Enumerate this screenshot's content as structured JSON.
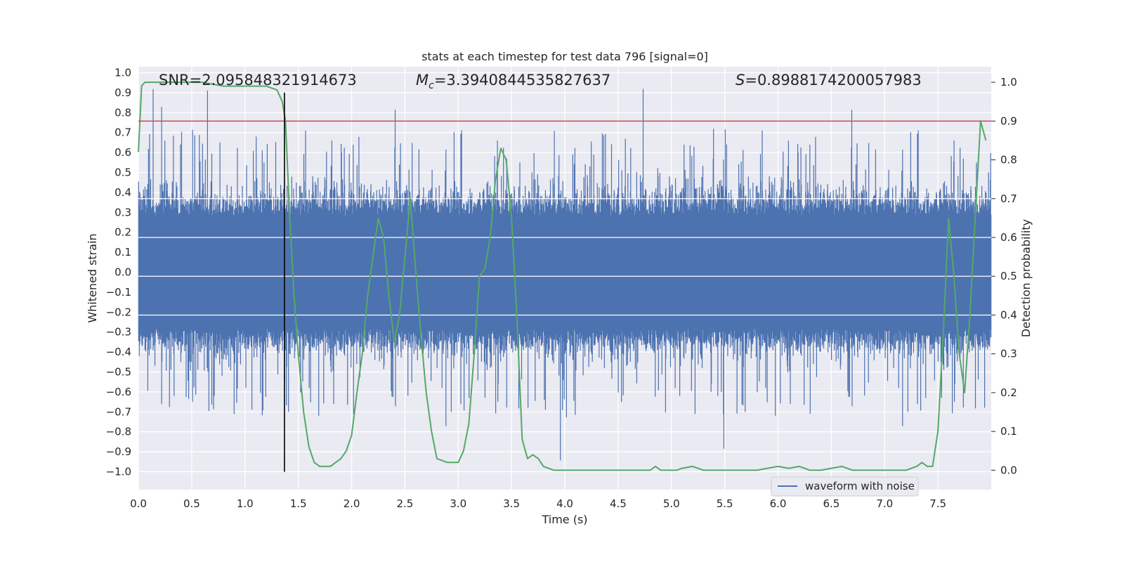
{
  "chart_data": {
    "type": "line",
    "title": "stats at each timestep for test data 796 [signal=0]",
    "xlabel": "Time (s)",
    "ylabel_left": "Whitened strain",
    "ylabel_right": "Detection probability",
    "xlim": [
      0.0,
      8.0
    ],
    "ylim_left": [
      -1.09,
      1.03
    ],
    "ylim_right": [
      -0.05,
      1.04
    ],
    "x_ticks": [
      "0.0",
      "0.5",
      "1.0",
      "1.5",
      "2.0",
      "2.5",
      "3.0",
      "3.5",
      "4.0",
      "4.5",
      "5.0",
      "5.5",
      "6.0",
      "6.5",
      "7.0",
      "7.5"
    ],
    "y_left_ticks": [
      "1.0",
      "0.9",
      "0.8",
      "0.7",
      "0.6",
      "0.5",
      "0.4",
      "0.3",
      "0.2",
      "0.1",
      "0.0",
      "−0.1",
      "−0.2",
      "−0.3",
      "−0.4",
      "−0.5",
      "−0.6",
      "−0.7",
      "−0.8",
      "−0.9",
      "−1.0"
    ],
    "y_right_ticks": [
      "1.0",
      "0.9",
      "0.8",
      "0.7",
      "0.6",
      "0.5",
      "0.4",
      "0.3",
      "0.2",
      "0.1",
      "0.0"
    ],
    "annotations": {
      "snr": "SNR=2.095848321914673",
      "mc_symbol": "M",
      "mc_sub": "c",
      "mc_value": "=3.3940844535827637",
      "s_symbol": "S",
      "s_value": "=0.8988174200057983"
    },
    "threshold_probability": 0.9,
    "threshold_color": "#c44e52",
    "vertical_marker_time": 1.37,
    "legend": [
      {
        "name": "waveform with noise",
        "color": "#4c72b0"
      }
    ],
    "series": [
      {
        "name": "waveform with noise",
        "axis": "left",
        "color": "#4c72b0",
        "envelope": "noise band approximately ±0.4 with spikes to ±0.9"
      },
      {
        "name": "detection probability",
        "axis": "right",
        "color": "#55a868",
        "x": [
          0.0,
          0.03,
          0.06,
          0.1,
          0.15,
          0.2,
          0.3,
          0.4,
          0.5,
          0.6,
          0.7,
          0.8,
          0.9,
          1.0,
          1.1,
          1.2,
          1.3,
          1.35,
          1.38,
          1.42,
          1.46,
          1.5,
          1.55,
          1.6,
          1.65,
          1.7,
          1.8,
          1.9,
          1.95,
          2.0,
          2.05,
          2.1,
          2.15,
          2.2,
          2.25,
          2.3,
          2.35,
          2.4,
          2.45,
          2.5,
          2.55,
          2.6,
          2.65,
          2.7,
          2.75,
          2.8,
          2.9,
          3.0,
          3.05,
          3.1,
          3.15,
          3.2,
          3.25,
          3.3,
          3.35,
          3.4,
          3.45,
          3.5,
          3.55,
          3.6,
          3.65,
          3.7,
          3.75,
          3.8,
          3.9,
          4.0,
          4.1,
          4.2,
          4.3,
          4.4,
          4.5,
          4.6,
          4.7,
          4.8,
          4.85,
          4.9,
          5.0,
          5.05,
          5.1,
          5.2,
          5.3,
          5.4,
          5.5,
          5.6,
          5.7,
          5.8,
          5.9,
          6.0,
          6.1,
          6.2,
          6.3,
          6.4,
          6.5,
          6.6,
          6.7,
          6.8,
          6.9,
          7.0,
          7.1,
          7.2,
          7.3,
          7.35,
          7.4,
          7.45,
          7.5,
          7.55,
          7.6,
          7.65,
          7.7,
          7.75,
          7.8,
          7.85,
          7.9,
          7.95
        ],
        "y": [
          0.82,
          0.99,
          1.0,
          1.0,
          1.0,
          1.0,
          1.0,
          1.0,
          1.0,
          1.0,
          0.995,
          0.99,
          0.99,
          0.99,
          0.99,
          0.99,
          0.98,
          0.95,
          0.9,
          0.65,
          0.45,
          0.3,
          0.15,
          0.06,
          0.02,
          0.01,
          0.01,
          0.03,
          0.05,
          0.09,
          0.2,
          0.3,
          0.45,
          0.55,
          0.65,
          0.6,
          0.45,
          0.33,
          0.4,
          0.55,
          0.7,
          0.52,
          0.35,
          0.2,
          0.1,
          0.03,
          0.02,
          0.02,
          0.05,
          0.12,
          0.3,
          0.5,
          0.52,
          0.6,
          0.75,
          0.83,
          0.8,
          0.65,
          0.4,
          0.08,
          0.03,
          0.04,
          0.03,
          0.01,
          0.0,
          0.0,
          0.0,
          0.0,
          0.0,
          0.0,
          0.0,
          0.0,
          0.0,
          0.0,
          0.01,
          0.0,
          0.0,
          0.0,
          0.005,
          0.01,
          0.0,
          0.0,
          0.0,
          0.0,
          0.0,
          0.0,
          0.005,
          0.01,
          0.005,
          0.01,
          0.0,
          0.0,
          0.005,
          0.01,
          0.0,
          0.0,
          0.0,
          0.0,
          0.0,
          0.0,
          0.01,
          0.02,
          0.01,
          0.01,
          0.1,
          0.35,
          0.65,
          0.5,
          0.3,
          0.2,
          0.4,
          0.65,
          0.9,
          0.85
        ]
      }
    ]
  }
}
